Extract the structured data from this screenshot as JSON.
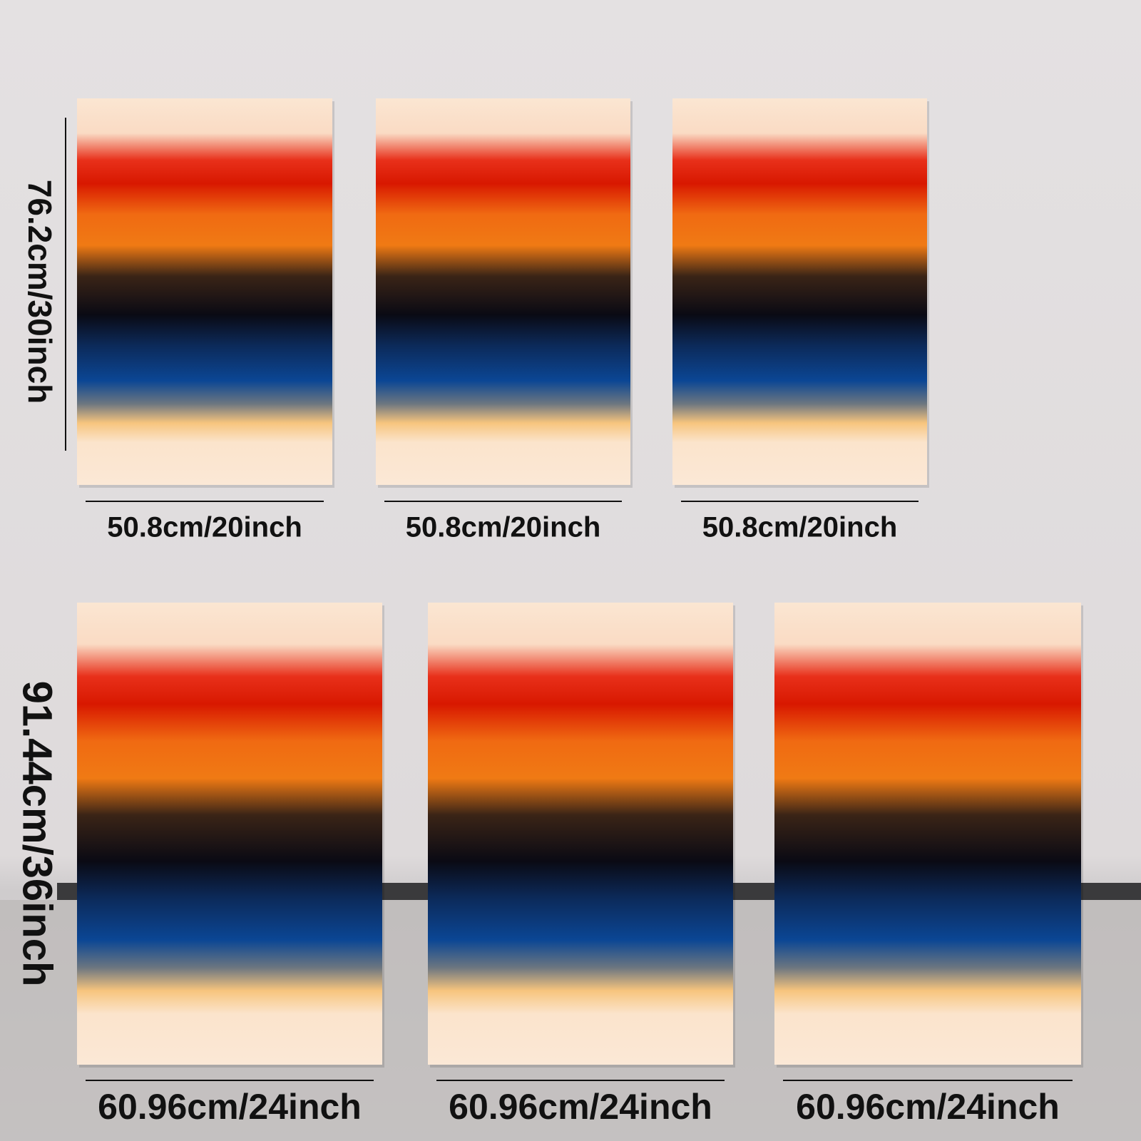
{
  "rows": [
    {
      "height_label": "76.2cm/30inch",
      "panels": [
        {
          "width_label": "50.8cm/20inch"
        },
        {
          "width_label": "50.8cm/20inch"
        },
        {
          "width_label": "50.8cm/20inch"
        }
      ]
    },
    {
      "height_label": "91.44cm/36inch",
      "panels": [
        {
          "width_label": "60.96cm/24inch"
        },
        {
          "width_label": "60.96cm/24inch"
        },
        {
          "width_label": "60.96cm/24inch"
        }
      ]
    }
  ]
}
